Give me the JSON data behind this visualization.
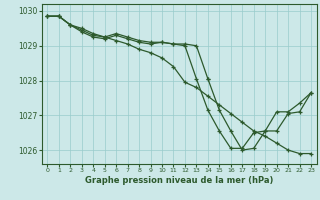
{
  "title": "Graphe pression niveau de la mer (hPa)",
  "bg_color": "#cce8e8",
  "grid_color": "#99cccc",
  "line_color": "#2d5a2d",
  "xlim": [
    -0.5,
    23.5
  ],
  "ylim": [
    1025.6,
    1030.2
  ],
  "yticks": [
    1026,
    1027,
    1028,
    1029,
    1030
  ],
  "xticks": [
    0,
    1,
    2,
    3,
    4,
    5,
    6,
    7,
    8,
    9,
    10,
    11,
    12,
    13,
    14,
    15,
    16,
    17,
    18,
    19,
    20,
    21,
    22,
    23
  ],
  "line1_x": [
    0,
    1,
    2,
    3,
    4,
    5,
    6,
    7,
    8,
    9,
    10,
    11,
    12,
    13,
    14,
    15,
    16,
    17,
    18,
    19,
    20,
    21,
    22,
    23
  ],
  "line1_y": [
    1029.85,
    1029.85,
    1029.6,
    1029.5,
    1029.35,
    1029.25,
    1029.15,
    1029.05,
    1028.9,
    1028.8,
    1028.65,
    1028.4,
    1027.95,
    1027.8,
    1027.55,
    1027.3,
    1027.05,
    1026.8,
    1026.55,
    1026.4,
    1026.2,
    1026.0,
    1025.9,
    1025.9
  ],
  "line2_x": [
    0,
    1,
    2,
    3,
    4,
    5,
    6,
    7,
    8,
    9,
    10,
    11,
    12,
    13,
    14
  ],
  "line2_y": [
    1029.85,
    1029.85,
    1029.6,
    1029.45,
    1029.3,
    1029.25,
    1029.35,
    1029.25,
    1029.15,
    1029.1,
    1029.1,
    1029.05,
    1029.05,
    1029.0,
    1028.05
  ],
  "line3_x": [
    0,
    1,
    2,
    3,
    4,
    5,
    6,
    7,
    8,
    9,
    10,
    11,
    12,
    13,
    14,
    15,
    16,
    17,
    18,
    19,
    20,
    21,
    22,
    23
  ],
  "line3_y": [
    1029.85,
    1029.85,
    1029.6,
    1029.4,
    1029.25,
    1029.2,
    1029.3,
    1029.2,
    1029.1,
    1029.05,
    1029.1,
    1029.05,
    1029.0,
    1028.05,
    1027.15,
    1026.55,
    1026.05,
    1026.05,
    1026.5,
    1026.55,
    1026.55,
    1027.05,
    1027.1,
    1027.65
  ],
  "line4_x": [
    14,
    15,
    16,
    17,
    18,
    19,
    20,
    21,
    22,
    23
  ],
  "line4_y": [
    1028.05,
    1027.15,
    1026.55,
    1026.0,
    1026.05,
    1026.55,
    1027.1,
    1027.1,
    1027.35,
    1027.65
  ]
}
